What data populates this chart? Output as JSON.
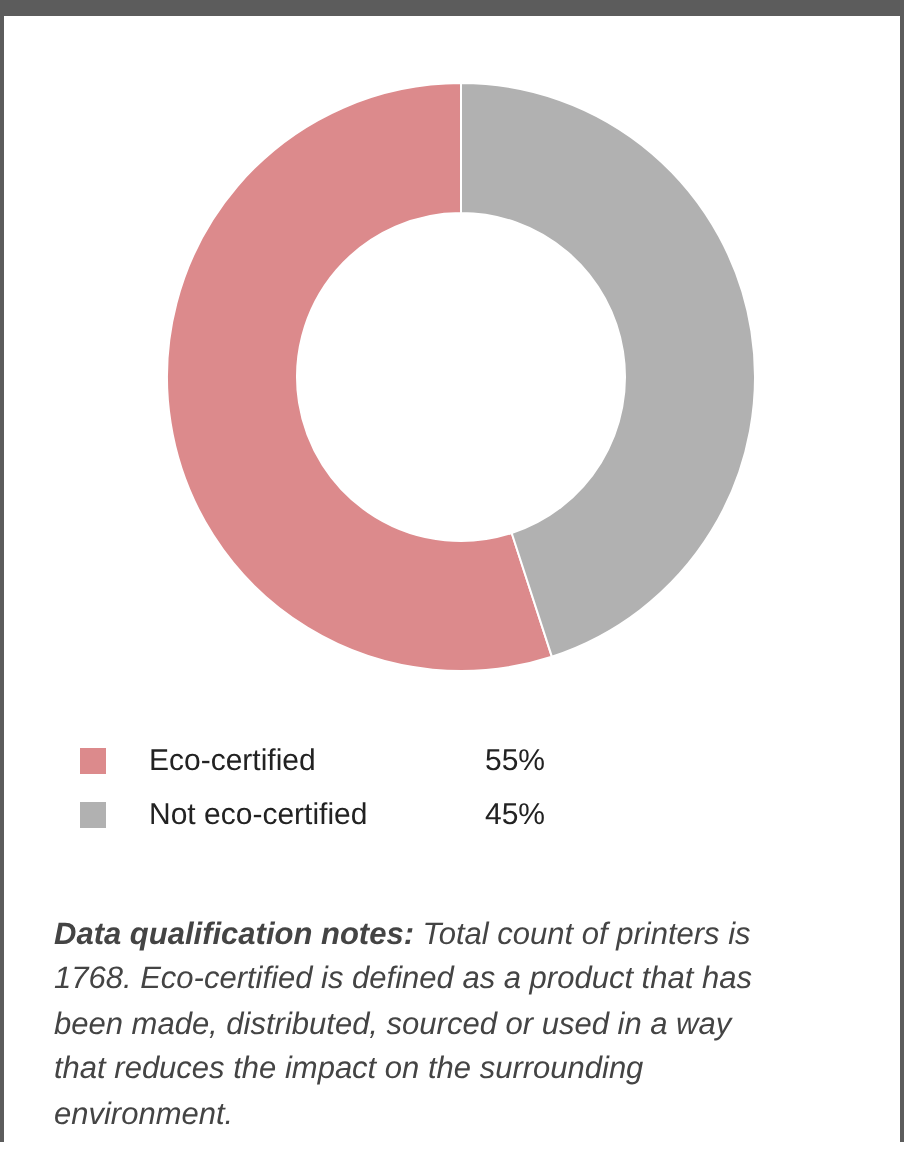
{
  "chart_data": {
    "type": "donut",
    "categories": [
      "Eco-certified",
      "Not eco-certified"
    ],
    "values": [
      55,
      45
    ],
    "colors": [
      "#dc8a8c",
      "#b1b1b1"
    ],
    "value_labels": [
      "55%",
      "45%"
    ],
    "legend": "bottom",
    "annotations": [
      "Data qualification notes:",
      "Total count of printers is 1768. Eco-certified is defined as a product that has been made, distributed, sourced or used in a way that reduces the impact on the surrounding environment."
    ]
  }
}
